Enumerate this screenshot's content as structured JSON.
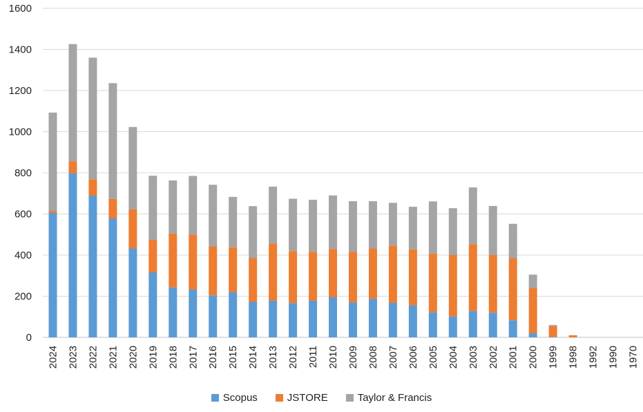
{
  "chart_data": {
    "type": "bar",
    "stacked": true,
    "categories": [
      "2024",
      "2023",
      "2022",
      "2021",
      "2020",
      "2019",
      "2018",
      "2017",
      "2016",
      "2015",
      "2014",
      "2013",
      "2012",
      "2011",
      "2010",
      "2009",
      "2008",
      "2007",
      "2006",
      "2005",
      "2004",
      "2003",
      "2002",
      "2001",
      "2000",
      "1999",
      "1998",
      "1992",
      "1990",
      "1970"
    ],
    "series": [
      {
        "name": "Scopus",
        "color": "#5B9BD5",
        "values": [
          605,
          798,
          689,
          578,
          432,
          316,
          243,
          232,
          204,
          220,
          173,
          178,
          167,
          178,
          195,
          170,
          187,
          168,
          156,
          122,
          102,
          128,
          120,
          83,
          20,
          2,
          0,
          0,
          0,
          0
        ]
      },
      {
        "name": "JSTORE",
        "color": "#ED7D31",
        "values": [
          10,
          58,
          80,
          95,
          190,
          158,
          262,
          268,
          238,
          218,
          212,
          278,
          252,
          238,
          235,
          245,
          245,
          278,
          272,
          285,
          298,
          325,
          281,
          302,
          220,
          53,
          10,
          0,
          0,
          0
        ]
      },
      {
        "name": "Taylor & Francis",
        "color": "#A5A5A5",
        "values": [
          478,
          570,
          591,
          563,
          401,
          312,
          258,
          285,
          300,
          245,
          253,
          277,
          255,
          253,
          260,
          247,
          230,
          208,
          207,
          254,
          228,
          276,
          238,
          167,
          65,
          5,
          0,
          0,
          0,
          0
        ]
      }
    ],
    "ylim": [
      0,
      1600
    ],
    "yticks": [
      0,
      200,
      400,
      600,
      800,
      1000,
      1200,
      1400,
      1600
    ],
    "grid": true,
    "legend": "bottom"
  }
}
